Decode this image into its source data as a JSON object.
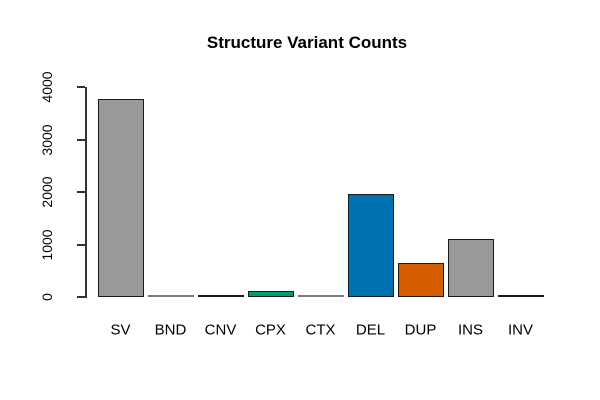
{
  "chart_data": {
    "type": "bar",
    "title": "Structure Variant Counts",
    "categories": [
      "SV",
      "BND",
      "CNV",
      "CPX",
      "CTX",
      "DEL",
      "DUP",
      "INS",
      "INV"
    ],
    "values": [
      3780,
      5,
      35,
      120,
      5,
      1960,
      640,
      1110,
      25
    ],
    "bar_colors": [
      "#999999",
      "#999999",
      "#ffffff",
      "#009e73",
      "#999999",
      "#0072b2",
      "#d55e00",
      "#999999",
      "#ffffff"
    ],
    "bar_border_colors": [
      "#1a1a1a",
      "#7a7a7a",
      "#1a1a1a",
      "#1a1a1a",
      "#7a7a7a",
      "#1a1a1a",
      "#1a1a1a",
      "#1a1a1a",
      "#1a1a1a"
    ],
    "xlabel": "",
    "ylabel": "",
    "ylim": [
      0,
      4000
    ],
    "yticks": [
      0,
      1000,
      2000,
      3000,
      4000
    ],
    "ytick_labels": [
      "0",
      "1000",
      "2000",
      "3000",
      "4000"
    ],
    "grid": false,
    "legend": false,
    "background": "#ffffff",
    "axis_color": "#333333",
    "text_color": "#000000"
  }
}
